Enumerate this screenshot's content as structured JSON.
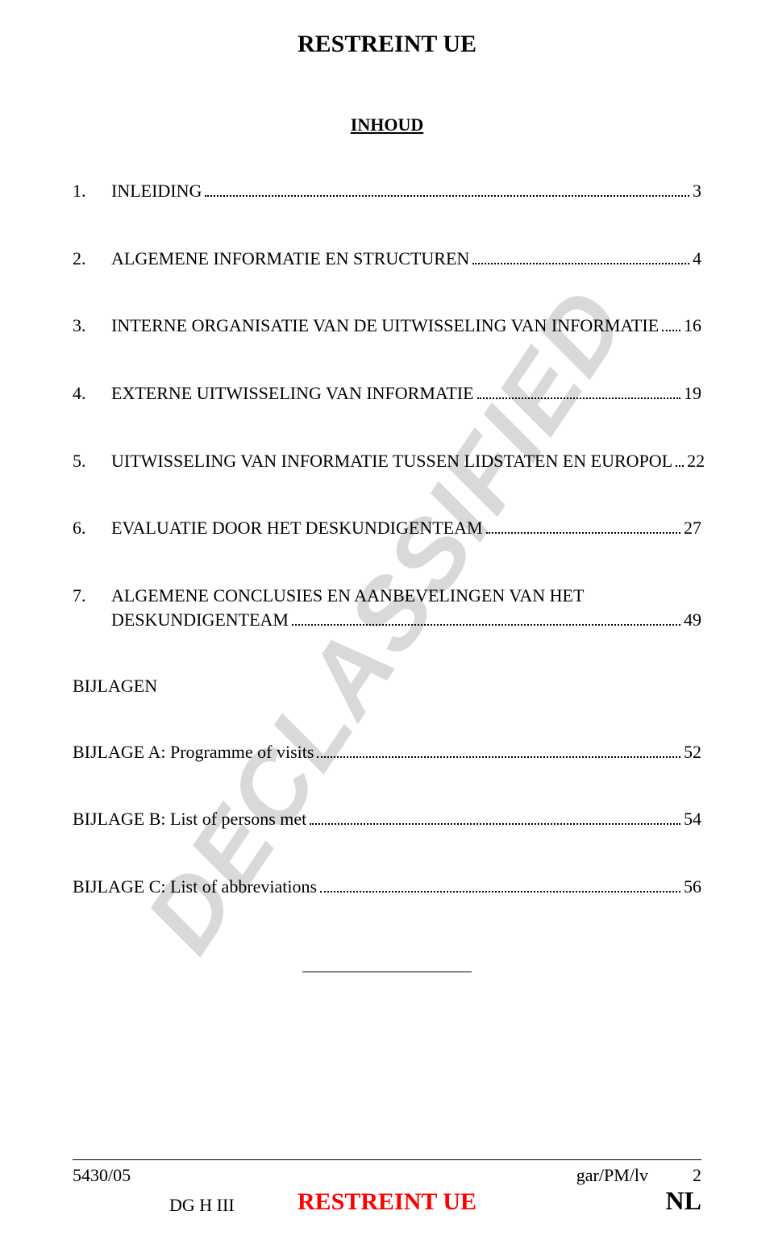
{
  "header": {
    "classification": "RESTREINT UE"
  },
  "toc": {
    "title": "INHOUD",
    "entries": [
      {
        "num": "1.",
        "text": "INLEIDING",
        "page": "3"
      },
      {
        "num": "2.",
        "text": "ALGEMENE INFORMATIE EN STRUCTUREN",
        "page": "4"
      },
      {
        "num": "3.",
        "text": "INTERNE ORGANISATIE VAN DE UITWISSELING VAN INFORMATIE",
        "page": "16"
      },
      {
        "num": "4.",
        "text": "EXTERNE UITWISSELING VAN INFORMATIE",
        "page": "19"
      },
      {
        "num": "5.",
        "text": "UITWISSELING VAN INFORMATIE TUSSEN LIDSTATEN EN EUROPOL",
        "page": "22"
      },
      {
        "num": "6.",
        "text": "EVALUATIE DOOR HET DESKUNDIGENTEAM",
        "page": "27"
      },
      {
        "num": "7.",
        "text_line1": "ALGEMENE CONCLUSIES EN AANBEVELINGEN VAN HET",
        "text_line2": "DESKUNDIGENTEAM",
        "page": "49",
        "multiline": true
      }
    ],
    "annexes_label": "BIJLAGEN",
    "annexes": [
      {
        "text": "BIJLAGE A: Programme of visits",
        "page": "52"
      },
      {
        "text": "BIJLAGE B: List of persons met",
        "page": "54"
      },
      {
        "text": "BIJLAGE C: List of abbreviations",
        "page": "56"
      }
    ]
  },
  "watermark": "DECLASSIFIED",
  "footer": {
    "doc_ref": "5430/05",
    "dg": "DG H III",
    "classification": "RESTREINT UE",
    "initials": "gar/PM/lv",
    "page_num": "2",
    "lang": "NL"
  },
  "colors": {
    "text": "#000000",
    "watermark": "#c0c0c0",
    "footer_red": "#ff0000",
    "background": "#ffffff"
  }
}
